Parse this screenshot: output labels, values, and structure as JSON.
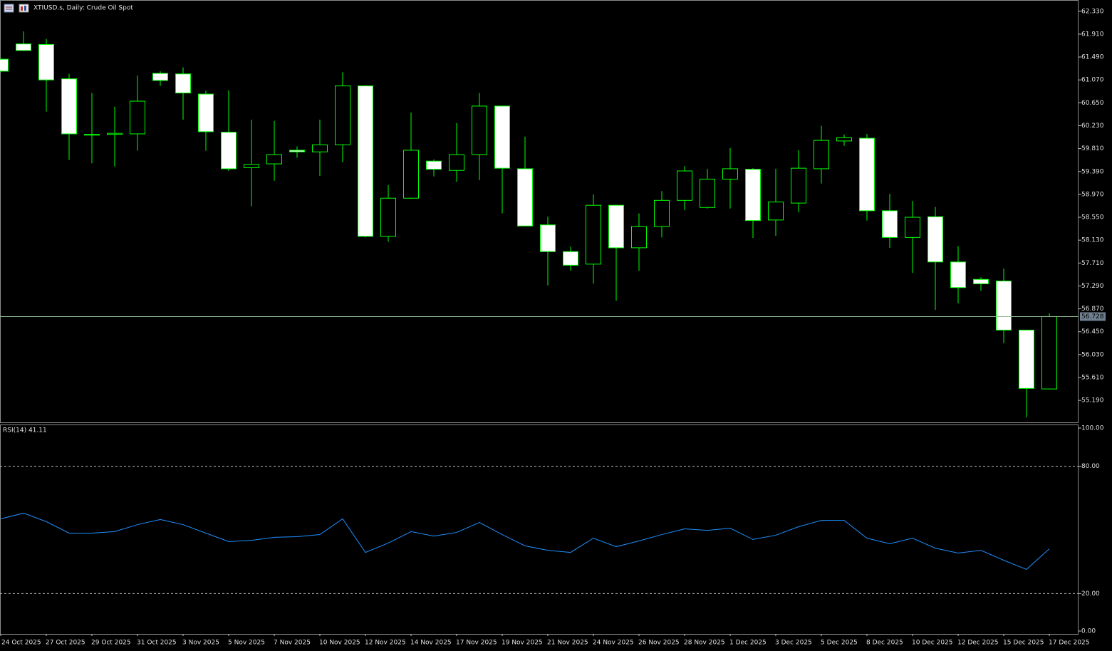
{
  "chart_data": {
    "type": "candlestick",
    "title": "XTIUSD.s, Daily:  Crude Oil Spot",
    "categories": [
      "24 Oct 2025",
      null,
      "27 Oct 2025",
      null,
      "29 Oct 2025",
      null,
      "31 Oct 2025",
      null,
      "3 Nov 2025",
      null,
      "5 Nov 2025",
      null,
      "7 Nov 2025",
      null,
      "10 Nov 2025",
      null,
      "12 Nov 2025",
      null,
      "14 Nov 2025",
      null,
      "17 Nov 2025",
      null,
      "19 Nov 2025",
      null,
      "21 Nov 2025",
      null,
      "24 Nov 2025",
      null,
      "26 Nov 2025",
      null,
      "28 Nov 2025",
      null,
      "1 Dec 2025",
      null,
      "3 Dec 2025",
      null,
      "5 Dec 2025",
      null,
      "8 Dec 2025",
      null,
      "10 Dec 2025",
      null,
      "12 Dec 2025",
      null,
      "15 Dec 2025",
      null,
      "17 Dec 2025"
    ],
    "open": [
      61.45,
      61.73,
      61.72,
      61.09,
      60.07,
      60.07,
      60.08,
      61.19,
      61.18,
      60.81,
      60.11,
      59.46,
      59.53,
      59.78,
      59.75,
      59.88,
      60.96,
      58.2,
      58.9,
      59.58,
      59.41,
      59.7,
      60.59,
      59.44,
      58.41,
      57.92,
      57.69,
      58.77,
      57.99,
      58.38,
      58.86,
      58.73,
      59.25,
      59.43,
      58.5,
      58.81,
      59.44,
      59.95,
      60.0,
      58.67,
      58.18,
      58.56,
      57.73,
      57.41,
      57.38,
      56.48,
      55.4
    ],
    "high": [
      61.47,
      61.96,
      61.82,
      61.18,
      60.83,
      60.58,
      61.15,
      61.23,
      61.3,
      60.87,
      60.88,
      60.34,
      60.32,
      59.85,
      60.34,
      61.21,
      60.97,
      59.14,
      60.47,
      59.61,
      60.28,
      60.83,
      60.6,
      60.03,
      58.56,
      58.01,
      58.97,
      58.78,
      58.62,
      59.03,
      59.49,
      59.44,
      59.82,
      59.45,
      59.44,
      59.78,
      60.23,
      60.07,
      60.08,
      58.98,
      58.85,
      58.74,
      58.02,
      57.45,
      57.61,
      56.48,
      56.79
    ],
    "low": [
      61.21,
      61.6,
      60.49,
      59.6,
      59.54,
      59.48,
      59.77,
      60.96,
      60.34,
      59.77,
      59.4,
      58.75,
      59.22,
      59.64,
      59.31,
      59.56,
      58.18,
      58.1,
      58.89,
      59.3,
      59.2,
      59.23,
      58.62,
      58.39,
      57.3,
      57.57,
      57.33,
      57.02,
      57.57,
      58.18,
      58.68,
      58.71,
      58.71,
      58.17,
      58.21,
      58.64,
      59.17,
      59.86,
      58.49,
      57.99,
      57.53,
      56.85,
      56.97,
      57.2,
      56.24,
      54.88,
      55.39
    ],
    "close": [
      61.23,
      61.61,
      61.07,
      60.08,
      60.06,
      60.09,
      60.68,
      61.06,
      60.83,
      60.12,
      59.44,
      59.52,
      59.7,
      59.75,
      59.88,
      60.96,
      58.2,
      58.9,
      59.78,
      59.43,
      59.7,
      60.59,
      59.45,
      58.39,
      57.92,
      57.67,
      58.77,
      57.99,
      58.38,
      58.86,
      59.4,
      59.25,
      59.44,
      58.49,
      58.83,
      59.45,
      59.96,
      60.01,
      58.67,
      58.18,
      58.55,
      57.73,
      57.26,
      57.33,
      56.48,
      55.41,
      56.728
    ],
    "color": "#00ff00",
    "bull_fill": "#000000",
    "bear_fill": "#ffffff",
    "ylim": [
      54.8,
      62.51
    ],
    "yticks": [
      {
        "value": 62.33,
        "label": "62.330"
      },
      {
        "value": 61.91,
        "label": "61.910"
      },
      {
        "value": 61.49,
        "label": "61.490"
      },
      {
        "value": 61.07,
        "label": "61.070"
      },
      {
        "value": 60.65,
        "label": "60.650"
      },
      {
        "value": 60.23,
        "label": "60.230"
      },
      {
        "value": 59.81,
        "label": "59.810"
      },
      {
        "value": 59.39,
        "label": "59.390"
      },
      {
        "value": 58.97,
        "label": "58.970"
      },
      {
        "value": 58.55,
        "label": "58.550"
      },
      {
        "value": 58.13,
        "label": "58.130"
      },
      {
        "value": 57.71,
        "label": "57.710"
      },
      {
        "value": 57.29,
        "label": "57.290"
      },
      {
        "value": 56.87,
        "label": "56.870"
      },
      {
        "value": 56.45,
        "label": "56.450"
      },
      {
        "value": 56.03,
        "label": "56.030"
      },
      {
        "value": 55.61,
        "label": "55.610"
      },
      {
        "value": 55.19,
        "label": "55.190"
      }
    ],
    "last_price": {
      "value": 56.728,
      "label": "56.728"
    },
    "grid": false,
    "indicator": {
      "label": "RSI(14) 41.11",
      "color": "#1e90ff",
      "values": [
        55.2,
        57.9,
        53.9,
        48.5,
        48.5,
        49.2,
        52.5,
        54.9,
        52.5,
        48.5,
        44.5,
        45.1,
        46.5,
        46.8,
        47.8,
        55.2,
        39.4,
        43.8,
        49.2,
        47.1,
        48.8,
        53.5,
        47.8,
        42.5,
        40.4,
        39.4,
        46.1,
        42.1,
        44.8,
        47.8,
        50.5,
        49.8,
        50.8,
        45.5,
        47.5,
        51.5,
        54.5,
        54.5,
        46.1,
        43.5,
        46.1,
        41.4,
        39.1,
        40.4,
        35.7,
        31.4,
        41.11
      ],
      "ylim": [
        0,
        100
      ],
      "yticks": [
        {
          "value": 100,
          "label": "100.00"
        },
        {
          "value": 80,
          "label": "80.00"
        },
        {
          "value": 20,
          "label": "20.00"
        },
        {
          "value": 0,
          "label": "0.00"
        }
      ],
      "levels": [
        80,
        20
      ]
    }
  }
}
